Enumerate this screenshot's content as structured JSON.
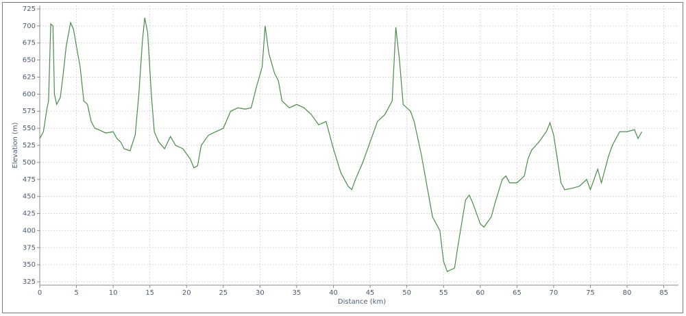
{
  "chart_data": {
    "type": "line",
    "x_label": "Distance (km)",
    "y_label": "Elevation (m)",
    "x": [
      0,
      0.5,
      1.0,
      1.2,
      1.5,
      1.8,
      2.0,
      2.3,
      2.8,
      3.2,
      3.6,
      4.2,
      4.6,
      5.0,
      5.5,
      6.0,
      6.5,
      7.0,
      7.5,
      8.0,
      9.0,
      10.0,
      10.5,
      11.0,
      11.5,
      12.3,
      13.0,
      13.5,
      14.0,
      14.3,
      14.7,
      15.2,
      15.6,
      16.2,
      17.0,
      17.8,
      18.5,
      19.5,
      20.5,
      21.0,
      21.5,
      22.0,
      23.0,
      24.0,
      25.0,
      26.0,
      27.0,
      28.0,
      28.8,
      29.5,
      30.3,
      30.7,
      31.2,
      32.0,
      32.5,
      33.0,
      34.0,
      35.0,
      36.0,
      37.0,
      38.0,
      39.0,
      40.0,
      41.0,
      42.0,
      42.5,
      43.0,
      44.0,
      45.0,
      46.0,
      47.0,
      48.0,
      48.5,
      49.0,
      49.5,
      50.5,
      51.0,
      52.0,
      53.0,
      53.5,
      54.5,
      55.0,
      55.5,
      56.5,
      57.0,
      58.0,
      58.5,
      59.0,
      60.0,
      60.5,
      61.5,
      62.0,
      63.0,
      63.5,
      64.0,
      65.0,
      66.0,
      66.5,
      67.0,
      68.0,
      69.0,
      69.5,
      70.0,
      70.5,
      71.0,
      71.5,
      72.5,
      73.5,
      74.5,
      75.0,
      76.0,
      76.5,
      77.0,
      77.5,
      78.0,
      79.0,
      80.0,
      81.0,
      81.5,
      82.0
    ],
    "values": [
      535,
      545,
      580,
      590,
      703,
      700,
      600,
      585,
      595,
      630,
      670,
      705,
      695,
      670,
      640,
      590,
      585,
      560,
      550,
      548,
      543,
      545,
      535,
      530,
      520,
      517,
      540,
      600,
      680,
      712,
      690,
      600,
      545,
      530,
      520,
      538,
      525,
      520,
      505,
      492,
      495,
      525,
      540,
      545,
      550,
      575,
      580,
      578,
      580,
      610,
      640,
      700,
      660,
      630,
      620,
      590,
      580,
      585,
      580,
      570,
      555,
      560,
      520,
      485,
      465,
      460,
      475,
      500,
      530,
      560,
      570,
      590,
      698,
      650,
      585,
      575,
      560,
      510,
      450,
      420,
      400,
      355,
      340,
      345,
      380,
      445,
      452,
      440,
      410,
      405,
      420,
      440,
      475,
      480,
      470,
      470,
      480,
      505,
      518,
      530,
      545,
      558,
      540,
      505,
      470,
      460,
      462,
      465,
      475,
      460,
      490,
      470,
      490,
      510,
      525,
      545,
      545,
      548,
      535,
      545
    ],
    "color": "#4a8a4a",
    "xlim": [
      0,
      87
    ],
    "xticks": [
      0,
      5,
      10,
      15,
      20,
      25,
      30,
      35,
      40,
      45,
      50,
      55,
      60,
      65,
      70,
      75,
      80,
      85
    ],
    "ylim": [
      320,
      730
    ],
    "yticks": [
      325,
      350,
      375,
      400,
      425,
      450,
      475,
      500,
      525,
      550,
      575,
      600,
      625,
      650,
      675,
      700,
      725
    ],
    "grid": true
  }
}
